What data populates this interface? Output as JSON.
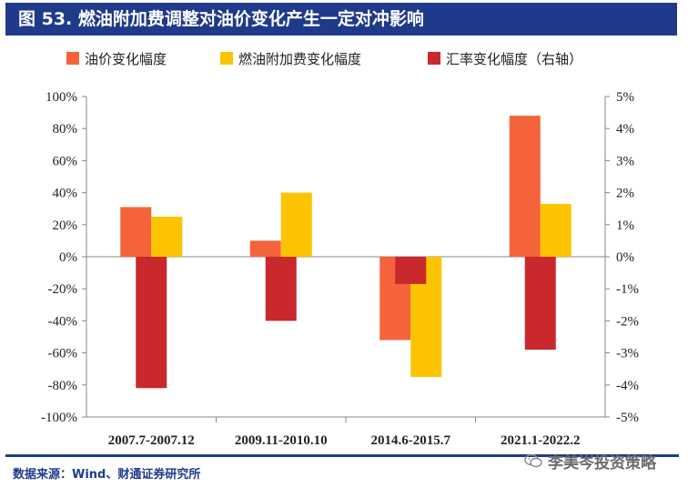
{
  "title": "图 53.  燃油附加费调整对油价变化产生一定对冲影响",
  "source": "数据来源：Wind、财通证券研究所",
  "watermark": "李美岑投资策略",
  "colors": {
    "title_bg": "#1f3a8a",
    "oil": "#f4633a",
    "surcharge": "#fcc400",
    "fx": "#c9282d"
  },
  "chart_data": {
    "type": "bar",
    "categories": [
      "2007.7-2007.12",
      "2009.11-2010.10",
      "2014.6-2015.7",
      "2021.1-2022.2"
    ],
    "series": [
      {
        "name": "油价变化幅度",
        "axis": "left",
        "values": [
          31,
          10,
          -52,
          88
        ]
      },
      {
        "name": "燃油附加费变化幅度",
        "axis": "left",
        "values": [
          25,
          40,
          -75,
          33
        ]
      },
      {
        "name": "汇率变化幅度（右轴）",
        "axis": "right",
        "values": [
          -4.1,
          -2.0,
          -0.85,
          -2.9
        ]
      }
    ],
    "ylim_left": [
      -100,
      100
    ],
    "ylim_right": [
      -5,
      5
    ],
    "yticks_left": [
      "100%",
      "80%",
      "60%",
      "40%",
      "20%",
      "0%",
      "-20%",
      "-40%",
      "-60%",
      "-80%",
      "-100%"
    ],
    "yticks_right": [
      "5%",
      "4%",
      "3%",
      "2%",
      "1%",
      "0%",
      "-1%",
      "-2%",
      "-3%",
      "-4%",
      "-5%"
    ],
    "grid": false,
    "legend_position": "top"
  }
}
